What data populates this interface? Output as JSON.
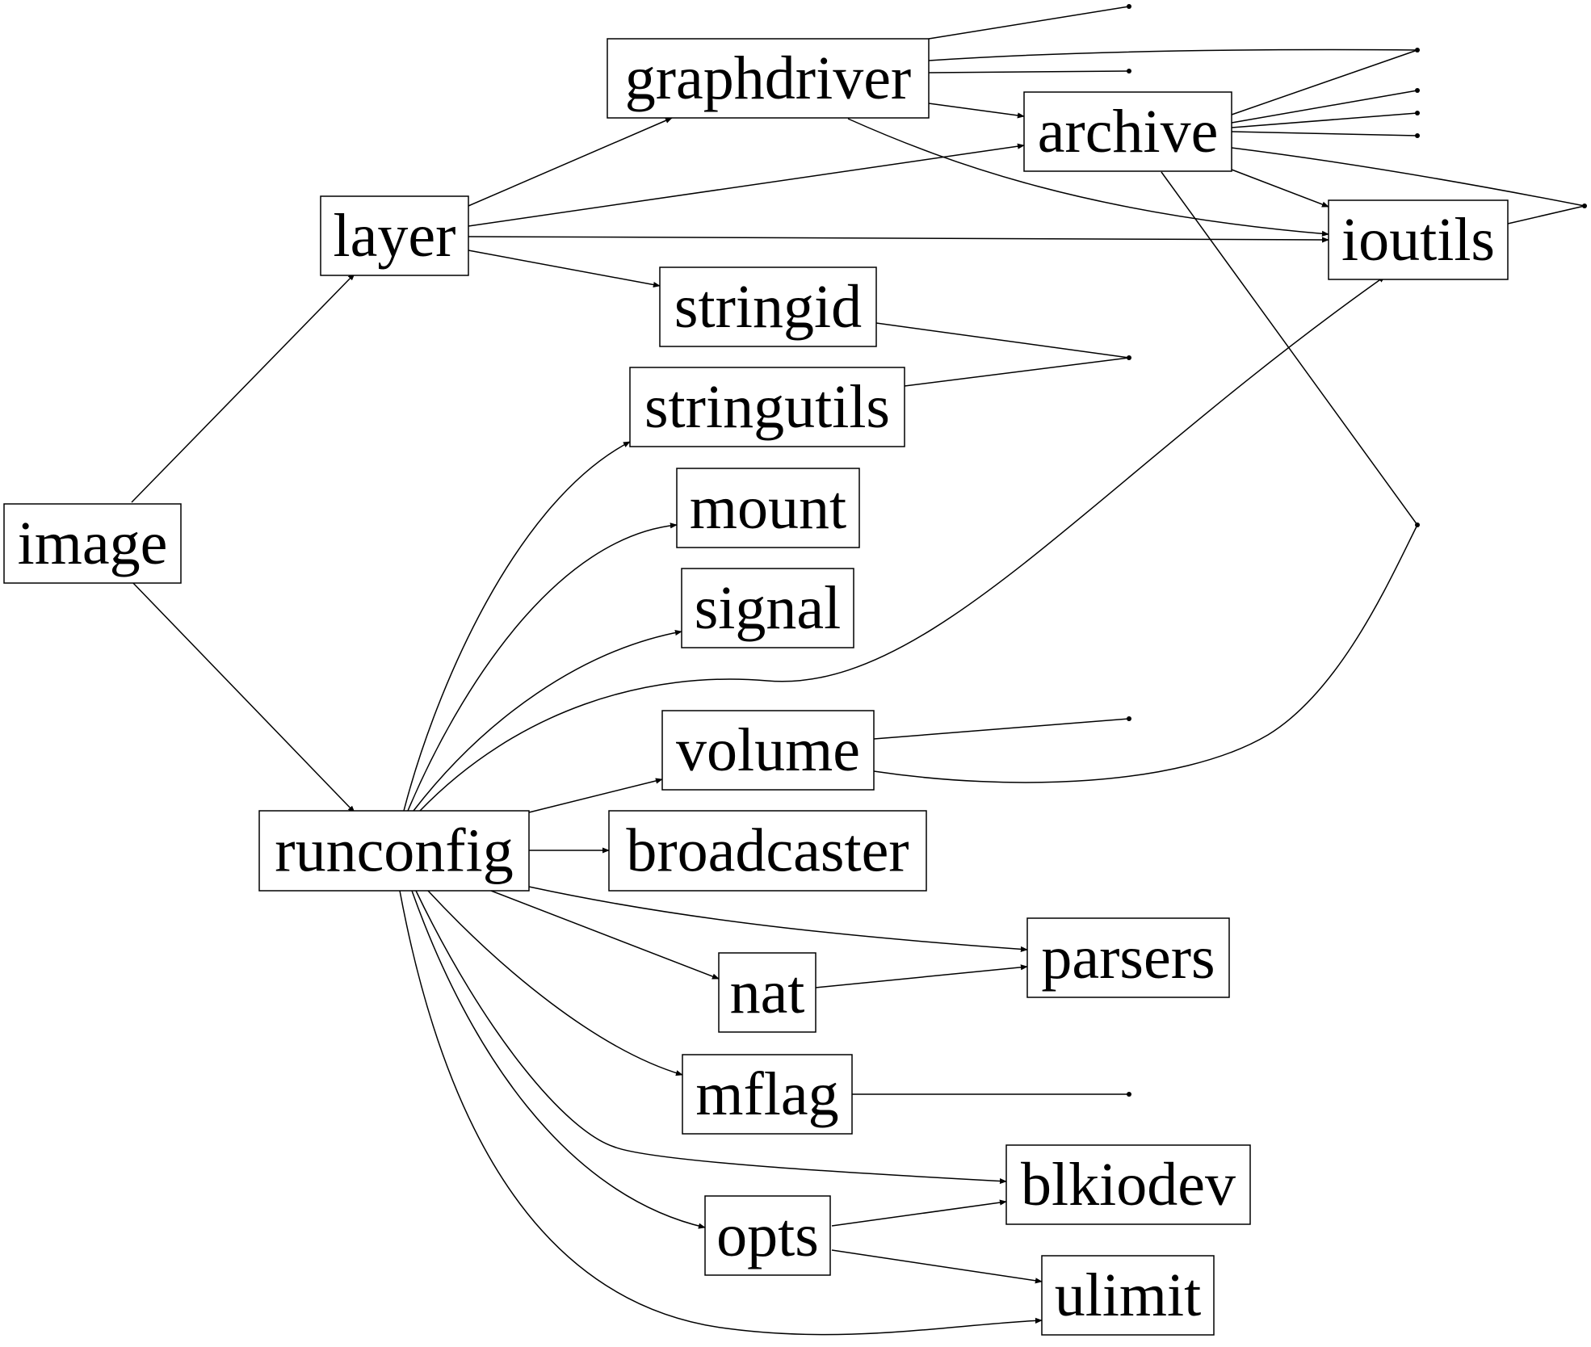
{
  "nodes": [
    {
      "id": "image",
      "label": "image"
    },
    {
      "id": "layer",
      "label": "layer"
    },
    {
      "id": "graphdriver",
      "label": "graphdriver"
    },
    {
      "id": "archive",
      "label": "archive"
    },
    {
      "id": "ioutils",
      "label": "ioutils"
    },
    {
      "id": "stringid",
      "label": "stringid"
    },
    {
      "id": "stringutils",
      "label": "stringutils"
    },
    {
      "id": "mount",
      "label": "mount"
    },
    {
      "id": "signal",
      "label": "signal"
    },
    {
      "id": "volume",
      "label": "volume"
    },
    {
      "id": "runconfig",
      "label": "runconfig"
    },
    {
      "id": "broadcaster",
      "label": "broadcaster"
    },
    {
      "id": "parsers",
      "label": "parsers"
    },
    {
      "id": "nat",
      "label": "nat"
    },
    {
      "id": "mflag",
      "label": "mflag"
    },
    {
      "id": "blkiodev",
      "label": "blkiodev"
    },
    {
      "id": "opts",
      "label": "opts"
    },
    {
      "id": "ulimit",
      "label": "ulimit"
    }
  ],
  "edges": [
    {
      "from": "image",
      "to": "layer"
    },
    {
      "from": "image",
      "to": "runconfig"
    },
    {
      "from": "layer",
      "to": "graphdriver"
    },
    {
      "from": "layer",
      "to": "archive"
    },
    {
      "from": "layer",
      "to": "ioutils"
    },
    {
      "from": "layer",
      "to": "stringid"
    },
    {
      "from": "graphdriver",
      "to": "archive"
    },
    {
      "from": "graphdriver",
      "to": "ioutils"
    },
    {
      "from": "archive",
      "to": "ioutils"
    },
    {
      "from": "runconfig",
      "to": "stringutils"
    },
    {
      "from": "runconfig",
      "to": "mount"
    },
    {
      "from": "runconfig",
      "to": "signal"
    },
    {
      "from": "runconfig",
      "to": "ioutils"
    },
    {
      "from": "runconfig",
      "to": "volume"
    },
    {
      "from": "runconfig",
      "to": "broadcaster"
    },
    {
      "from": "runconfig",
      "to": "parsers"
    },
    {
      "from": "runconfig",
      "to": "nat"
    },
    {
      "from": "runconfig",
      "to": "mflag"
    },
    {
      "from": "runconfig",
      "to": "blkiodev"
    },
    {
      "from": "runconfig",
      "to": "opts"
    },
    {
      "from": "runconfig",
      "to": "ulimit"
    },
    {
      "from": "nat",
      "to": "parsers"
    },
    {
      "from": "opts",
      "to": "blkiodev"
    },
    {
      "from": "opts",
      "to": "ulimit"
    }
  ]
}
